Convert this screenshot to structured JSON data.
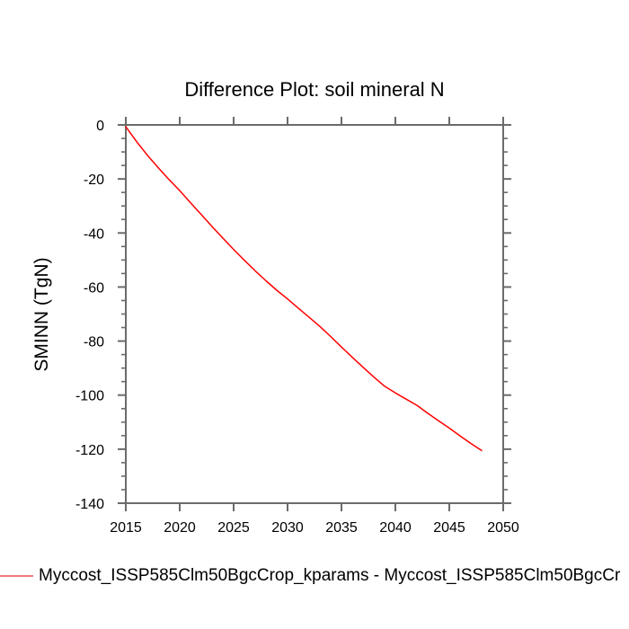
{
  "window": {
    "background": "#ffffff"
  },
  "chart_data": {
    "type": "line",
    "title": "Difference Plot: soil mineral N",
    "xlabel": "",
    "ylabel": "SMINN (TgN)",
    "xlim": [
      2015,
      2050
    ],
    "ylim": [
      -140,
      0
    ],
    "grid": false,
    "legend_position": "bottom-left",
    "x_tick_values": [
      2015,
      2020,
      2025,
      2030,
      2035,
      2040,
      2045,
      2050
    ],
    "x_tick_labels": [
      "2015",
      "2020",
      "2025",
      "2030",
      "2035",
      "2040",
      "2045",
      "2050"
    ],
    "y_tick_values": [
      0,
      -20,
      -40,
      -60,
      -80,
      -100,
      -120,
      -140
    ],
    "y_tick_labels": [
      "0",
      "-20",
      "-40",
      "-60",
      "-80",
      "-100",
      "-120",
      "-140"
    ],
    "y_minor_tick_values": [
      -5,
      -10,
      -15,
      -25,
      -30,
      -35,
      -45,
      -50,
      -55,
      -65,
      -70,
      -75,
      -85,
      -90,
      -95,
      -105,
      -110,
      -115,
      -125,
      -130,
      -135
    ],
    "x": [
      2015,
      2016,
      2017,
      2018,
      2019,
      2020,
      2021,
      2022,
      2023,
      2024,
      2025,
      2026,
      2027,
      2028,
      2029,
      2030,
      2031,
      2032,
      2033,
      2034,
      2035,
      2036,
      2037,
      2038,
      2039,
      2040,
      2041,
      2042,
      2043,
      2044,
      2045,
      2046,
      2047,
      2048
    ],
    "series": [
      {
        "name": "Myccost_ISSP585Clm50BgcCrop_kparams - Myccost_ISSP585Clm50BgcCr",
        "color": "#ff0000",
        "values": [
          -0.7,
          -6.2,
          -11.2,
          -15.8,
          -20.2,
          -24.3,
          -28.8,
          -33.2,
          -37.6,
          -41.9,
          -46.1,
          -50.1,
          -54.0,
          -57.7,
          -61.2,
          -64.4,
          -67.8,
          -71.2,
          -74.6,
          -78.3,
          -82.2,
          -86.0,
          -89.7,
          -93.3,
          -96.7,
          -99.2,
          -101.5,
          -103.8,
          -106.7,
          -109.5,
          -112.2,
          -115.1,
          -117.9,
          -120.5
        ]
      }
    ],
    "frame_color": "#6b6b6b",
    "tick_label_color": "#000000"
  },
  "legend": {
    "label": "Myccost_ISSP585Clm50BgcCrop_kparams - Myccost_ISSP585Clm50BgcCr",
    "line_color": "#f27c7c"
  }
}
